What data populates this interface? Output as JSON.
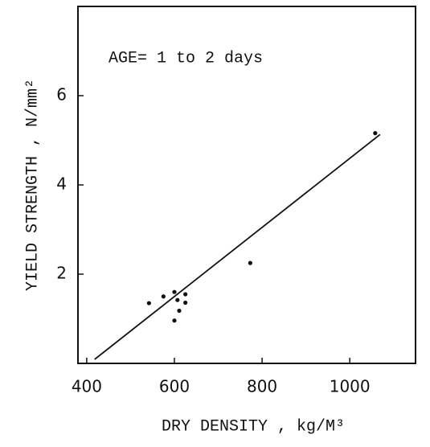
{
  "chart_data": {
    "type": "scatter",
    "x_label": "DRY  DENSITY , kg/M³",
    "y_label": "YIELD STRENGTH , N/mm²",
    "annotation": "AGE= 1 to 2 days",
    "series": [
      {
        "color": "#111111",
        "x": [
          542,
          575,
          600,
          607,
          625,
          625,
          611,
          600,
          773,
          1058
        ],
        "values": [
          1.35,
          1.5,
          1.6,
          1.42,
          1.55,
          1.36,
          1.18,
          0.96,
          2.25,
          5.16
        ]
      }
    ],
    "fit_line": {
      "x": [
        418,
        1069
      ],
      "values": [
        0.09,
        5.13
      ],
      "color": "#111111"
    },
    "xlim": [
      380,
      1150
    ],
    "ylim": [
      0,
      8
    ],
    "xticks": [
      400,
      600,
      800,
      1000
    ],
    "yticks": [
      2,
      4,
      6
    ]
  }
}
